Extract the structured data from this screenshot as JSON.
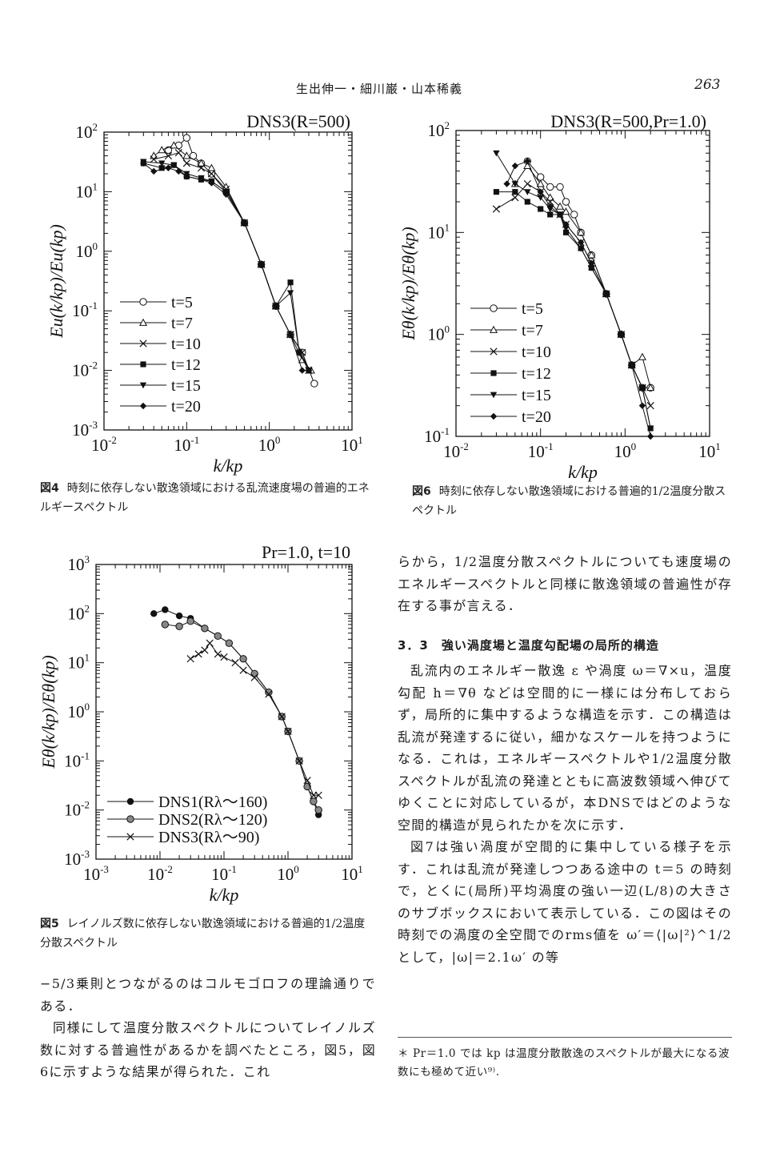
{
  "header": {
    "running_title": "生出伸一・細川巌・山本稀義",
    "page_number": "263"
  },
  "figures": {
    "fig4": {
      "panel_title": "DNS3(R=500)",
      "caption_label": "図4",
      "caption_text": "時刻に依存しない散逸領域における乱流速度場の普遍的エネルギースペクトル"
    },
    "fig6": {
      "panel_title": "DNS3(R=500,Pr=1.0)",
      "caption_label": "図6",
      "caption_text": "時刻に依存しない散逸領域における普遍的1/2温度分散スペクトル"
    },
    "fig5": {
      "panel_title": "Pr=1.0, t=10",
      "caption_label": "図5",
      "caption_text": "レイノルズ数に依存しない散逸領域における普遍的1/2温度分散スペクトル"
    }
  },
  "left_text": {
    "p1": "−5/3乗則とつながるのはコルモゴロフの理論通りである．",
    "p2": "同様にして温度分散スペクトルについてレイノルズ数に対する普遍性があるかを調べたところ，図5，図6に示すような結果が得られた．これ"
  },
  "right_text": {
    "p1": "らから，1/2温度分散スペクトルについても速度場のエネルギースペクトルと同様に散逸領域の普遍性が存在する事が言える．",
    "heading": "3．3　強い渦度場と温度勾配場の局所的構造",
    "p2": "乱流内のエネルギー散逸 ε や渦度 ω＝∇×u，温度勾配 h＝∇θ などは空間的に一様には分布しておらず，局所的に集中するような構造を示す．この構造は乱流が発達するに従い，細かなスケールを持つようになる．これは，エネルギースペクトルや1/2温度分散スペクトルが乱流の発達とともに高波数領域へ伸びてゆくことに対応しているが，本DNSではどのような空間的構造が見られたかを次に示す．",
    "p3": "図7は強い渦度が空間的に集中している様子を示す．これは乱流が発達しつつある途中の t＝5 の時刻で，とくに(局所)平均渦度の強い一辺(L/8)の大きさのサブボックスにおいて表示している．この図はその時刻での渦度の全空間でのrms値を ω′＝⟨|ω|²⟩^1/2 として，|ω|＝2.1ω′ の等",
    "footnote": "＊ Pr＝1.0 では kp は温度分散散逸のスペクトルが最大になる波数にも極めて近い⁹⁾."
  },
  "chart_data": [
    {
      "id": "fig4",
      "type": "line",
      "title": "DNS3(R=500)",
      "xlabel": "k/kp",
      "ylabel": "Eu(k/kp)/Eu(kp)",
      "log_x": true,
      "log_y": true,
      "xlim": [
        0.01,
        10
      ],
      "ylim": [
        0.001,
        100
      ],
      "x_ticks": [
        "10-2",
        "10-1",
        "100",
        "101"
      ],
      "y_ticks": [
        "10-3",
        "10-2",
        "10-1",
        "100",
        "101",
        "102"
      ],
      "legend_position": "lower-left",
      "series": [
        {
          "name": "t=5",
          "marker": "open-circle",
          "x": [
            0.06,
            0.08,
            0.1,
            0.12,
            0.15,
            0.2,
            0.3,
            0.5,
            0.8,
            1.2,
            1.8,
            2.5,
            3.5
          ],
          "y": [
            50,
            60,
            80,
            40,
            30,
            20,
            10,
            3,
            0.6,
            0.12,
            0.04,
            0.02,
            0.006
          ]
        },
        {
          "name": "t=7",
          "marker": "open-triangle",
          "x": [
            0.04,
            0.05,
            0.07,
            0.1,
            0.15,
            0.2,
            0.3,
            0.5,
            0.8,
            1.2,
            1.8,
            2.5,
            3.2
          ],
          "y": [
            40,
            50,
            60,
            40,
            30,
            25,
            12,
            3,
            0.6,
            0.12,
            0.04,
            0.015,
            0.01
          ]
        },
        {
          "name": "t=10",
          "marker": "cross",
          "x": [
            0.04,
            0.06,
            0.08,
            0.1,
            0.15,
            0.2,
            0.3,
            0.5,
            0.8,
            1.2,
            1.8,
            2.5,
            3.0
          ],
          "y": [
            35,
            40,
            45,
            30,
            25,
            20,
            11,
            3,
            0.6,
            0.12,
            0.04,
            0.02,
            0.01
          ]
        },
        {
          "name": "t=12",
          "marker": "filled-square",
          "x": [
            0.03,
            0.05,
            0.07,
            0.1,
            0.15,
            0.2,
            0.3,
            0.5,
            0.8,
            1.2,
            1.8,
            2.3,
            3.0
          ],
          "y": [
            30,
            25,
            28,
            18,
            16,
            15,
            10,
            3,
            0.6,
            0.12,
            0.3,
            0.02,
            0.01
          ]
        },
        {
          "name": "t=15",
          "marker": "filled-triangle-down",
          "x": [
            0.03,
            0.05,
            0.07,
            0.1,
            0.15,
            0.2,
            0.3,
            0.5,
            0.8,
            1.2,
            1.8,
            2.3,
            3.0
          ],
          "y": [
            32,
            30,
            28,
            20,
            17,
            15,
            10,
            3,
            0.6,
            0.12,
            0.2,
            0.02,
            0.01
          ]
        },
        {
          "name": "t=20",
          "marker": "filled-diamond",
          "x": [
            0.03,
            0.04,
            0.06,
            0.08,
            0.1,
            0.15,
            0.2,
            0.3,
            0.5,
            0.8,
            1.2,
            1.8,
            2.5,
            3.0
          ],
          "y": [
            30,
            22,
            25,
            22,
            18,
            16,
            14,
            9,
            3,
            0.6,
            0.12,
            0.04,
            0.01,
            0.01
          ]
        }
      ]
    },
    {
      "id": "fig6",
      "type": "line",
      "title": "DNS3(R=500,Pr=1.0)",
      "xlabel": "k/kp",
      "ylabel": "Eθ(k/kp)/Eθ(kp)",
      "log_x": true,
      "log_y": true,
      "xlim": [
        0.01,
        10
      ],
      "ylim": [
        0.1,
        100
      ],
      "x_ticks": [
        "10-2",
        "10-1",
        "100",
        "101"
      ],
      "y_ticks": [
        "10-1",
        "100",
        "101",
        "102"
      ],
      "legend_position": "lower-left",
      "series": [
        {
          "name": "t=5",
          "marker": "open-circle",
          "x": [
            0.07,
            0.1,
            0.13,
            0.17,
            0.2,
            0.25,
            0.3,
            0.4,
            0.6,
            0.9,
            1.2,
            1.6,
            2.0
          ],
          "y": [
            50,
            35,
            28,
            28,
            20,
            15,
            10,
            6,
            2.5,
            1.0,
            0.5,
            0.3,
            0.3
          ]
        },
        {
          "name": "t=7",
          "marker": "open-triangle",
          "x": [
            0.05,
            0.07,
            0.1,
            0.13,
            0.17,
            0.2,
            0.3,
            0.4,
            0.6,
            0.9,
            1.2,
            1.6,
            2.0
          ],
          "y": [
            30,
            45,
            30,
            22,
            18,
            16,
            10,
            6,
            2.5,
            1.0,
            0.5,
            0.6,
            0.3
          ]
        },
        {
          "name": "t=10",
          "marker": "cross",
          "x": [
            0.03,
            0.05,
            0.07,
            0.1,
            0.13,
            0.17,
            0.2,
            0.3,
            0.4,
            0.6,
            0.9,
            1.2,
            1.6,
            2.0
          ],
          "y": [
            17,
            22,
            30,
            25,
            20,
            15,
            12,
            8,
            5,
            2.5,
            1.0,
            0.5,
            0.3,
            0.2
          ]
        },
        {
          "name": "t=12",
          "marker": "filled-square",
          "x": [
            0.03,
            0.05,
            0.07,
            0.1,
            0.13,
            0.17,
            0.2,
            0.3,
            0.4,
            0.6,
            0.9,
            1.2,
            1.6,
            2.0
          ],
          "y": [
            25,
            25,
            20,
            17,
            15,
            15,
            10,
            7,
            4.5,
            2.5,
            1.0,
            0.5,
            0.3,
            0.12
          ]
        },
        {
          "name": "t=15",
          "marker": "filled-triangle-down",
          "x": [
            0.03,
            0.05,
            0.07,
            0.1,
            0.13,
            0.17,
            0.2,
            0.3,
            0.4,
            0.6,
            0.9,
            1.2,
            1.6,
            2.0
          ],
          "y": [
            60,
            30,
            25,
            22,
            17,
            15,
            11,
            7,
            4.5,
            2.5,
            1.0,
            0.5,
            0.3,
            0.12
          ]
        },
        {
          "name": "t=20",
          "marker": "filled-diamond",
          "x": [
            0.04,
            0.05,
            0.07,
            0.1,
            0.13,
            0.17,
            0.2,
            0.3,
            0.4,
            0.6,
            0.9,
            1.2,
            1.6,
            2.0
          ],
          "y": [
            30,
            45,
            50,
            25,
            18,
            15,
            12,
            8,
            5,
            2.5,
            1.0,
            0.5,
            0.2,
            0.1
          ]
        }
      ]
    },
    {
      "id": "fig5",
      "type": "line",
      "title": "Pr=1.0, t=10",
      "xlabel": "k/kp",
      "ylabel": "Eθ(k/kp)/Eθ(kp)",
      "log_x": true,
      "log_y": true,
      "xlim": [
        0.001,
        10
      ],
      "ylim": [
        0.001,
        1000
      ],
      "x_ticks": [
        "10-3",
        "10-2",
        "10-1",
        "100",
        "101"
      ],
      "y_ticks": [
        "10-3",
        "10-2",
        "10-1",
        "100",
        "101",
        "102",
        "103"
      ],
      "legend_position": "lower-left",
      "series": [
        {
          "name": "DNS1(Rλ〜160)",
          "marker": "filled-circle",
          "x": [
            0.008,
            0.012,
            0.02,
            0.03,
            0.05,
            0.08,
            0.12,
            0.2,
            0.3,
            0.5,
            0.8,
            1.0,
            1.5,
            2.0,
            2.5,
            3.0
          ],
          "y": [
            100,
            120,
            90,
            80,
            50,
            35,
            25,
            12,
            6,
            2.5,
            0.8,
            0.4,
            0.1,
            0.03,
            0.015,
            0.008
          ]
        },
        {
          "name": "DNS2(Rλ〜120)",
          "marker": "gray-circle",
          "x": [
            0.012,
            0.02,
            0.03,
            0.05,
            0.08,
            0.12,
            0.2,
            0.3,
            0.5,
            0.8,
            1.0,
            1.5,
            2.0,
            2.5,
            3.0
          ],
          "y": [
            60,
            55,
            70,
            50,
            35,
            25,
            12,
            6,
            2.5,
            0.8,
            0.4,
            0.1,
            0.03,
            0.015,
            0.01
          ]
        },
        {
          "name": "DNS3(Rλ〜90)",
          "marker": "cross",
          "x": [
            0.03,
            0.04,
            0.05,
            0.06,
            0.08,
            0.1,
            0.15,
            0.2,
            0.3,
            0.5,
            0.8,
            1.0,
            1.5,
            2.0,
            2.5,
            3.0
          ],
          "y": [
            12,
            15,
            18,
            25,
            15,
            13,
            10,
            7,
            5,
            2.3,
            0.8,
            0.4,
            0.1,
            0.04,
            0.02,
            0.02
          ]
        }
      ]
    }
  ]
}
